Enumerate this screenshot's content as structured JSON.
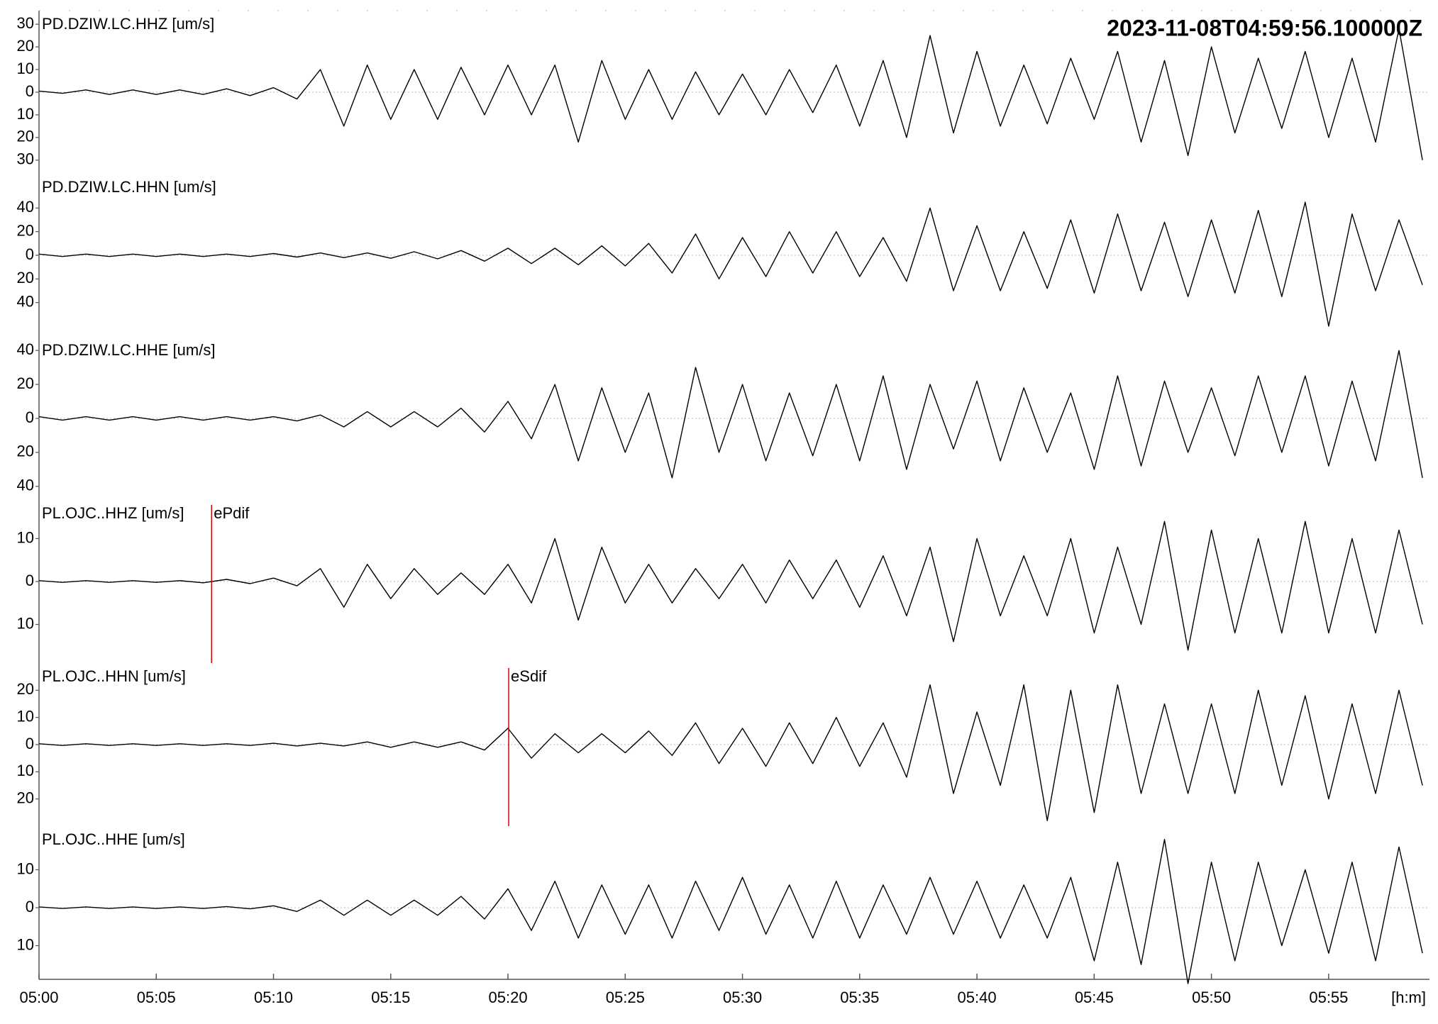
{
  "chart_data": {
    "type": "line",
    "title": "2023-11-08T04:59:56.100000Z",
    "x_label": "[h:m]",
    "x": [
      0,
      1,
      2,
      3,
      4,
      5,
      6,
      7,
      8,
      9,
      10,
      11,
      12,
      13,
      14,
      15,
      16,
      17,
      18,
      19,
      20,
      21,
      22,
      23,
      24,
      25,
      26,
      27,
      28,
      29,
      30,
      31,
      32,
      33,
      34,
      35,
      36,
      37,
      38,
      39,
      40,
      41,
      42,
      43,
      44,
      45,
      46,
      47,
      48,
      49,
      50,
      51,
      52,
      53,
      54,
      55,
      56,
      57,
      58,
      59
    ],
    "xlim": [
      0,
      59.3
    ],
    "xticks": [
      {
        "value": 0,
        "label": "05:00"
      },
      {
        "value": 5,
        "label": "05:05"
      },
      {
        "value": 10,
        "label": "05:10"
      },
      {
        "value": 15,
        "label": "05:15"
      },
      {
        "value": 20,
        "label": "05:20"
      },
      {
        "value": 25,
        "label": "05:25"
      },
      {
        "value": 30,
        "label": "05:30"
      },
      {
        "value": 35,
        "label": "05:35"
      },
      {
        "value": 40,
        "label": "05:40"
      },
      {
        "value": 45,
        "label": "05:45"
      },
      {
        "value": 50,
        "label": "05:50"
      },
      {
        "value": 55,
        "label": "05:55"
      }
    ],
    "grid": true,
    "series": [
      {
        "name": "PD.DZIW.LC.HHZ [um/s]",
        "color": "#000000",
        "ylim": [
          -36,
          36
        ],
        "yticks": [
          30,
          20,
          10,
          0,
          {
            "value": -10,
            "label": "10"
          },
          {
            "value": -20,
            "label": "20"
          },
          {
            "value": -30,
            "label": "30"
          }
        ],
        "values": [
          0.5,
          -0.5,
          1,
          -1,
          1,
          -1,
          1,
          -1,
          1.5,
          -1.5,
          2,
          -3,
          10,
          -15,
          12,
          -12,
          10,
          -12,
          11,
          -10,
          12,
          -10,
          12,
          -22,
          14,
          -12,
          10,
          -12,
          9,
          -10,
          8,
          -10,
          10,
          -9,
          12,
          -15,
          14,
          -20,
          25,
          -18,
          18,
          -15,
          12,
          -14,
          15,
          -12,
          18,
          -22,
          14,
          -28,
          20,
          -18,
          15,
          -16,
          18,
          -20,
          15,
          -22,
          28,
          -30
        ]
      },
      {
        "name": "PD.DZIW.LC.HHN [um/s]",
        "color": "#000000",
        "ylim": [
          -69,
          69
        ],
        "yticks": [
          40,
          20,
          0,
          {
            "value": -20,
            "label": "20"
          },
          {
            "value": -40,
            "label": "40"
          }
        ],
        "values": [
          1,
          -1,
          1,
          -1,
          1,
          -1,
          1,
          -1,
          1,
          -1,
          1.5,
          -1.5,
          2,
          -2,
          2,
          -2.5,
          3,
          -3,
          4,
          -5,
          6,
          -7,
          6,
          -8,
          8,
          -9,
          10,
          -15,
          18,
          -20,
          15,
          -18,
          20,
          -15,
          20,
          -18,
          15,
          -22,
          40,
          -30,
          25,
          -30,
          20,
          -28,
          30,
          -32,
          35,
          -30,
          28,
          -35,
          30,
          -32,
          38,
          -35,
          45,
          -60,
          35,
          -30,
          30,
          -25
        ]
      },
      {
        "name": "PD.DZIW.LC.HHE [um/s]",
        "color": "#000000",
        "ylim": [
          -48,
          48
        ],
        "yticks": [
          40,
          20,
          0,
          {
            "value": -20,
            "label": "20"
          },
          {
            "value": -40,
            "label": "40"
          }
        ],
        "values": [
          1,
          -1,
          1,
          -1,
          1,
          -1,
          1,
          -1,
          1,
          -1,
          1,
          -1.5,
          2,
          -5,
          4,
          -5,
          4,
          -5,
          6,
          -8,
          10,
          -12,
          20,
          -25,
          18,
          -20,
          15,
          -35,
          30,
          -20,
          20,
          -25,
          15,
          -22,
          20,
          -25,
          25,
          -30,
          20,
          -18,
          22,
          -25,
          18,
          -20,
          15,
          -30,
          25,
          -28,
          22,
          -20,
          18,
          -22,
          25,
          -20,
          25,
          -28,
          22,
          -25,
          40,
          -35
        ]
      },
      {
        "name": "PL.OJC..HHZ [um/s]",
        "color": "#000000",
        "ylim": [
          -19,
          19
        ],
        "yticks": [
          10,
          0,
          {
            "value": -10,
            "label": "10"
          }
        ],
        "picks": [
          {
            "label": "ePdif",
            "x": 7.36,
            "color": "#d40000"
          }
        ],
        "values": [
          0.2,
          -0.2,
          0.2,
          -0.2,
          0.2,
          -0.2,
          0.2,
          -0.3,
          0.5,
          -0.5,
          0.8,
          -1,
          3,
          -6,
          4,
          -4,
          3,
          -3,
          2,
          -3,
          4,
          -5,
          10,
          -9,
          8,
          -5,
          4,
          -5,
          3,
          -4,
          4,
          -5,
          5,
          -4,
          5,
          -6,
          6,
          -8,
          8,
          -14,
          10,
          -8,
          6,
          -8,
          10,
          -12,
          8,
          -10,
          14,
          -16,
          12,
          -12,
          10,
          -12,
          14,
          -12,
          10,
          -12,
          12,
          -10
        ]
      },
      {
        "name": "PL.OJC..HHN [um/s]",
        "color": "#000000",
        "ylim": [
          -30,
          30
        ],
        "yticks": [
          20,
          10,
          0,
          {
            "value": -10,
            "label": "10"
          },
          {
            "value": -20,
            "label": "20"
          }
        ],
        "picks": [
          {
            "label": "eSdif",
            "x": 20.03,
            "color": "#d40000"
          }
        ],
        "values": [
          0.3,
          -0.3,
          0.3,
          -0.3,
          0.3,
          -0.3,
          0.3,
          -0.3,
          0.3,
          -0.3,
          0.5,
          -0.5,
          0.5,
          -0.5,
          1,
          -1,
          1,
          -1,
          1,
          -2,
          6,
          -5,
          4,
          -3,
          4,
          -3,
          5,
          -4,
          8,
          -7,
          6,
          -8,
          8,
          -7,
          10,
          -8,
          8,
          -12,
          22,
          -18,
          12,
          -15,
          22,
          -28,
          20,
          -25,
          22,
          -18,
          15,
          -18,
          15,
          -18,
          20,
          -15,
          18,
          -20,
          15,
          -18,
          20,
          -15
        ]
      },
      {
        "name": "PL.OJC..HHE [um/s]",
        "color": "#000000",
        "ylim": [
          -21.5,
          21.5
        ],
        "yticks": [
          10,
          0,
          {
            "value": -10,
            "label": "10"
          }
        ],
        "values": [
          0.2,
          -0.2,
          0.2,
          -0.2,
          0.2,
          -0.2,
          0.2,
          -0.2,
          0.3,
          -0.3,
          0.5,
          -1,
          2,
          -2,
          2,
          -2,
          2,
          -2,
          3,
          -3,
          5,
          -6,
          7,
          -8,
          6,
          -7,
          6,
          -8,
          7,
          -6,
          8,
          -7,
          6,
          -8,
          7,
          -8,
          6,
          -7,
          8,
          -7,
          7,
          -8,
          6,
          -8,
          8,
          -14,
          12,
          -15,
          18,
          -20,
          12,
          -14,
          12,
          -10,
          10,
          -12,
          12,
          -14,
          16,
          -12
        ]
      }
    ]
  }
}
